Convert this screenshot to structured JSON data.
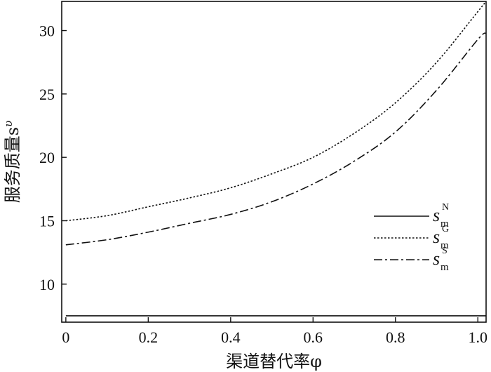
{
  "chart_data": {
    "type": "line",
    "xlabel": "渠道替代率φ",
    "ylabel": "服务质量s",
    "ylabel_sup": "υ",
    "xlim": [
      -0.01,
      1.02
    ],
    "ylim": [
      7,
      32.3
    ],
    "xticks": [
      0,
      0.2,
      0.4,
      0.6,
      0.8,
      1.0
    ],
    "xtick_labels": [
      "0",
      "0.2",
      "0.4",
      "0.6",
      "0.8",
      "1.0"
    ],
    "yticks": [
      10,
      15,
      20,
      25,
      30
    ],
    "ytick_labels": [
      "10",
      "15",
      "20",
      "25",
      "30"
    ],
    "grid": false,
    "legend_position": "center-right",
    "x": [
      0,
      0.1,
      0.2,
      0.3,
      0.4,
      0.5,
      0.6,
      0.7,
      0.8,
      0.9,
      1.0,
      1.02
    ],
    "series": [
      {
        "name": "s_m^N",
        "sym": "s",
        "sub": "m",
        "sup": "N",
        "dash": "solid",
        "values": [
          7.5,
          7.5,
          7.5,
          7.5,
          7.5,
          7.5,
          7.5,
          7.5,
          7.5,
          7.5,
          7.5,
          7.5
        ]
      },
      {
        "name": "s_m^G",
        "sym": "s",
        "sub": "m",
        "sup": "G",
        "dash": "dotted",
        "values": [
          15.0,
          15.4,
          16.1,
          16.8,
          17.6,
          18.7,
          20.0,
          21.9,
          24.3,
          27.5,
          31.5,
          32.3
        ]
      },
      {
        "name": "s_m^S",
        "sym": "s",
        "sub": "m",
        "sup": "S",
        "dash": "dashdot",
        "values": [
          13.1,
          13.5,
          14.1,
          14.8,
          15.5,
          16.5,
          17.9,
          19.7,
          22.0,
          25.3,
          29.3,
          29.8
        ]
      }
    ]
  }
}
